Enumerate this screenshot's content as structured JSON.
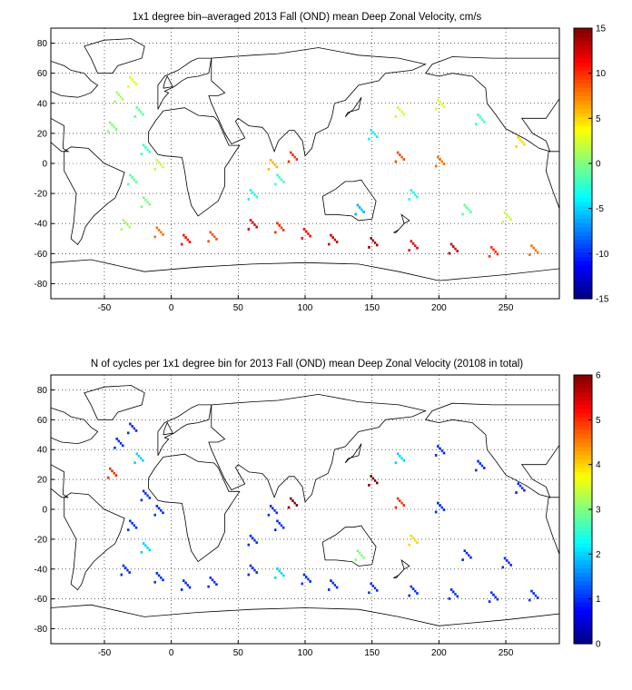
{
  "chart_data": [
    {
      "type": "heatmap",
      "title": "1x1 degree bin–averaged 2013 Fall (OND) mean Deep Zonal Velocity, cm/s",
      "xlabel": "",
      "ylabel": "",
      "xlim": [
        -90,
        290
      ],
      "ylim": [
        -90,
        90
      ],
      "x_ticks": [
        -50,
        0,
        50,
        100,
        150,
        200,
        250
      ],
      "y_ticks": [
        80,
        60,
        40,
        20,
        0,
        -20,
        -40,
        -60,
        -80
      ],
      "grid": "dotted",
      "colormap": "jet",
      "colorbar": {
        "min": -15,
        "max": 15,
        "ticks": [
          15,
          10,
          5,
          0,
          -5,
          -10,
          -15
        ]
      },
      "cells": [
        {
          "lon": -30,
          "lat": 55,
          "value": 3
        },
        {
          "lon": -40,
          "lat": 45,
          "value": 1
        },
        {
          "lon": -25,
          "lat": 35,
          "value": -1
        },
        {
          "lon": -45,
          "lat": 25,
          "value": 0
        },
        {
          "lon": -20,
          "lat": 10,
          "value": -2
        },
        {
          "lon": -10,
          "lat": 0,
          "value": 2
        },
        {
          "lon": -30,
          "lat": -10,
          "value": -1
        },
        {
          "lon": -20,
          "lat": -25,
          "value": 0
        },
        {
          "lon": -35,
          "lat": -40,
          "value": 1
        },
        {
          "lon": -10,
          "lat": -45,
          "value": 8
        },
        {
          "lon": 10,
          "lat": -50,
          "value": 11
        },
        {
          "lon": 30,
          "lat": -48,
          "value": 9
        },
        {
          "lon": 60,
          "lat": -40,
          "value": 12
        },
        {
          "lon": 80,
          "lat": -42,
          "value": 10
        },
        {
          "lon": 100,
          "lat": -46,
          "value": 11
        },
        {
          "lon": 120,
          "lat": -50,
          "value": 13
        },
        {
          "lon": 150,
          "lat": -52,
          "value": 14
        },
        {
          "lon": 180,
          "lat": -54,
          "value": 12
        },
        {
          "lon": 210,
          "lat": -56,
          "value": 13
        },
        {
          "lon": 240,
          "lat": -58,
          "value": 10
        },
        {
          "lon": 270,
          "lat": -57,
          "value": 8
        },
        {
          "lon": 60,
          "lat": -20,
          "value": -3
        },
        {
          "lon": 80,
          "lat": -10,
          "value": -2
        },
        {
          "lon": 75,
          "lat": 0,
          "value": 6
        },
        {
          "lon": 90,
          "lat": 5,
          "value": 10
        },
        {
          "lon": 170,
          "lat": 5,
          "value": 9
        },
        {
          "lon": 200,
          "lat": 2,
          "value": 8
        },
        {
          "lon": 150,
          "lat": 20,
          "value": -4
        },
        {
          "lon": 170,
          "lat": 35,
          "value": 2
        },
        {
          "lon": 200,
          "lat": 40,
          "value": 3
        },
        {
          "lon": 230,
          "lat": 30,
          "value": -2
        },
        {
          "lon": 260,
          "lat": 15,
          "value": 5
        },
        {
          "lon": 180,
          "lat": -20,
          "value": -3
        },
        {
          "lon": 220,
          "lat": -30,
          "value": -1
        },
        {
          "lon": 250,
          "lat": -35,
          "value": 2
        },
        {
          "lon": 140,
          "lat": -30,
          "value": -6
        }
      ]
    },
    {
      "type": "heatmap",
      "title": "N of cycles per 1x1 degree bin for 2013 Fall (OND) mean Deep Zonal Velocity (20108 in total)",
      "xlabel": "",
      "ylabel": "",
      "xlim": [
        -90,
        290
      ],
      "ylim": [
        -90,
        90
      ],
      "x_ticks": [
        -50,
        0,
        50,
        100,
        150,
        200,
        250
      ],
      "y_ticks": [
        80,
        60,
        40,
        20,
        0,
        -20,
        -40,
        -60,
        -80
      ],
      "grid": "dotted",
      "colormap": "jet",
      "colorbar": {
        "min": 0,
        "max": 6,
        "ticks": [
          6,
          5,
          4,
          3,
          2,
          1,
          0
        ]
      },
      "cells": [
        {
          "lon": -30,
          "lat": 55,
          "value": 1
        },
        {
          "lon": -40,
          "lat": 45,
          "value": 1
        },
        {
          "lon": -25,
          "lat": 35,
          "value": 2
        },
        {
          "lon": -45,
          "lat": 25,
          "value": 5
        },
        {
          "lon": -20,
          "lat": 10,
          "value": 1
        },
        {
          "lon": -10,
          "lat": 0,
          "value": 1
        },
        {
          "lon": -30,
          "lat": -10,
          "value": 1
        },
        {
          "lon": -20,
          "lat": -25,
          "value": 2
        },
        {
          "lon": -35,
          "lat": -40,
          "value": 1
        },
        {
          "lon": -10,
          "lat": -45,
          "value": 1
        },
        {
          "lon": 10,
          "lat": -50,
          "value": 1
        },
        {
          "lon": 30,
          "lat": -48,
          "value": 1
        },
        {
          "lon": 60,
          "lat": -40,
          "value": 1
        },
        {
          "lon": 80,
          "lat": -42,
          "value": 2
        },
        {
          "lon": 100,
          "lat": -46,
          "value": 1
        },
        {
          "lon": 120,
          "lat": -50,
          "value": 1
        },
        {
          "lon": 150,
          "lat": -52,
          "value": 1
        },
        {
          "lon": 180,
          "lat": -54,
          "value": 1
        },
        {
          "lon": 210,
          "lat": -56,
          "value": 1
        },
        {
          "lon": 240,
          "lat": -58,
          "value": 1
        },
        {
          "lon": 270,
          "lat": -57,
          "value": 1
        },
        {
          "lon": 60,
          "lat": -20,
          "value": 1
        },
        {
          "lon": 80,
          "lat": -10,
          "value": 1
        },
        {
          "lon": 75,
          "lat": 0,
          "value": 1
        },
        {
          "lon": 90,
          "lat": 5,
          "value": 6
        },
        {
          "lon": 170,
          "lat": 5,
          "value": 5
        },
        {
          "lon": 200,
          "lat": 2,
          "value": 1
        },
        {
          "lon": 150,
          "lat": 20,
          "value": 6
        },
        {
          "lon": 170,
          "lat": 35,
          "value": 2
        },
        {
          "lon": 200,
          "lat": 40,
          "value": 1
        },
        {
          "lon": 230,
          "lat": 30,
          "value": 1
        },
        {
          "lon": 260,
          "lat": 15,
          "value": 1
        },
        {
          "lon": 180,
          "lat": -20,
          "value": 4
        },
        {
          "lon": 220,
          "lat": -30,
          "value": 1
        },
        {
          "lon": 250,
          "lat": -35,
          "value": 1
        },
        {
          "lon": 140,
          "lat": -30,
          "value": 3
        }
      ]
    }
  ]
}
